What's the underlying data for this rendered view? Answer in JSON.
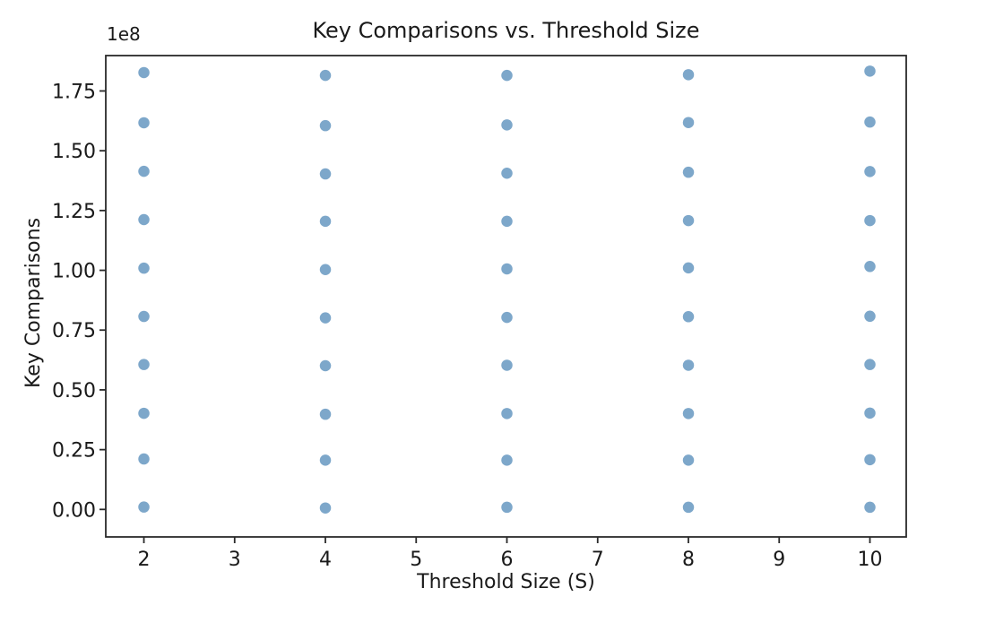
{
  "chart_data": {
    "type": "scatter",
    "title": "Key Comparisons vs. Threshold Size",
    "xlabel": "Threshold Size (S)",
    "ylabel": "Key Comparisons",
    "y_axis_offset_text": "1e8",
    "x_tick_labels": [
      "2",
      "3",
      "4",
      "5",
      "6",
      "7",
      "8",
      "9",
      "10"
    ],
    "x_tick_values": [
      2,
      3,
      4,
      5,
      6,
      7,
      8,
      9,
      10
    ],
    "y_tick_labels": [
      "0.00",
      "0.25",
      "0.50",
      "0.75",
      "1.00",
      "1.25",
      "1.50",
      "1.75"
    ],
    "y_tick_values_1e8": [
      0.0,
      0.25,
      0.5,
      0.75,
      1.0,
      1.25,
      1.5,
      1.75
    ],
    "xlim": [
      1.58,
      10.4
    ],
    "ylim_1e8": [
      -0.115,
      1.898
    ],
    "grid": false,
    "marker_color": "#4682b4",
    "marker_opacity": 0.7,
    "marker_radius_px": 6.25,
    "columns": [
      {
        "x": 2,
        "y_values_1e8": [
          0.01,
          0.211,
          0.402,
          0.606,
          0.807,
          1.009,
          1.212,
          1.414,
          1.617,
          1.827
        ]
      },
      {
        "x": 4,
        "y_values_1e8": [
          0.006,
          0.206,
          0.398,
          0.601,
          0.801,
          1.003,
          1.205,
          1.403,
          1.605,
          1.815
        ]
      },
      {
        "x": 6,
        "y_values_1e8": [
          0.009,
          0.206,
          0.401,
          0.603,
          0.803,
          1.006,
          1.205,
          1.406,
          1.608,
          1.815
        ]
      },
      {
        "x": 8,
        "y_values_1e8": [
          0.009,
          0.206,
          0.401,
          0.603,
          0.806,
          1.01,
          1.208,
          1.41,
          1.618,
          1.818
        ]
      },
      {
        "x": 10,
        "y_values_1e8": [
          0.009,
          0.208,
          0.403,
          0.606,
          0.808,
          1.016,
          1.208,
          1.413,
          1.62,
          1.833
        ]
      }
    ],
    "colors": {
      "background": "#ffffff",
      "spine": "#2a2a2a",
      "tick": "#2a2a2a",
      "text": "#1a1a1a"
    }
  }
}
